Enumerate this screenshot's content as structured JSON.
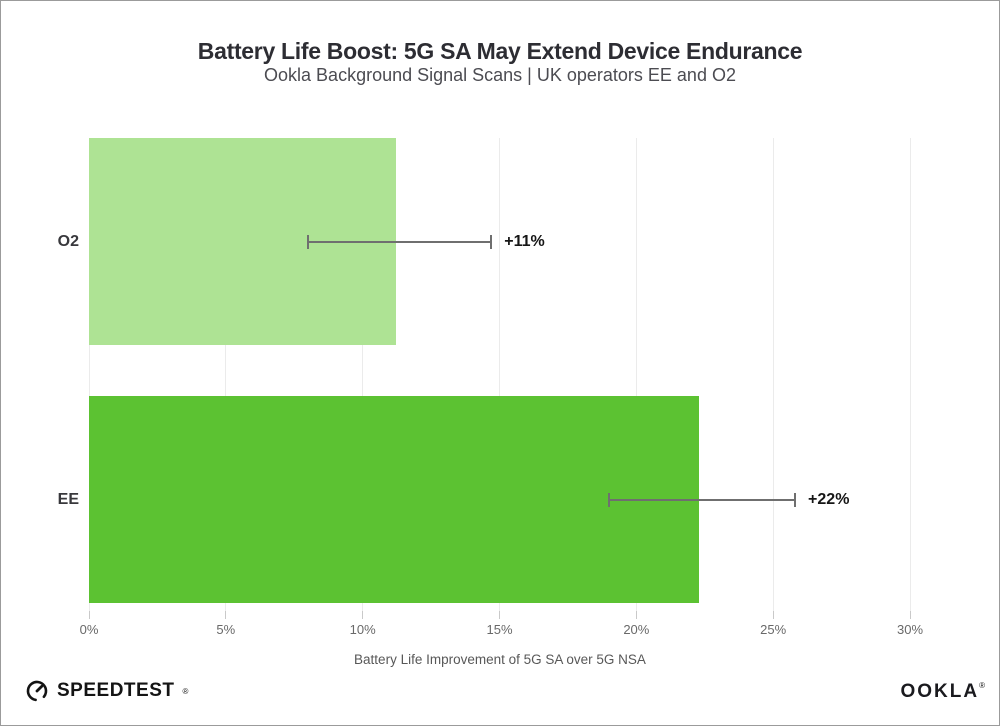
{
  "chart_data": {
    "type": "bar",
    "orientation": "horizontal",
    "title": "Battery Life Boost: 5G SA May Extend Device Endurance",
    "subtitle": "Ookla Background Signal Scans | UK operators EE and O2",
    "categories": [
      "O2",
      "EE"
    ],
    "values": [
      11.2,
      22.3
    ],
    "data_labels": [
      "+11%",
      "+22%"
    ],
    "bar_colors": [
      "#aee394",
      "#5cc232"
    ],
    "error_bars": [
      {
        "low": 8.0,
        "high": 14.7
      },
      {
        "low": 19.0,
        "high": 25.8
      }
    ],
    "xlabel": "Battery Life Improvement of 5G SA over 5G NSA",
    "xlim": [
      0,
      30
    ],
    "xticks": [
      0,
      5,
      10,
      15,
      20,
      25,
      30
    ],
    "xtick_labels": [
      "0%",
      "5%",
      "10%",
      "15%",
      "20%",
      "25%",
      "30%"
    ],
    "grid": "vertical-light",
    "legend": "none"
  },
  "footer": {
    "speedtest_logo": "SPEEDTEST",
    "speedtest_mark": "®",
    "ookla_logo": "OOKLA",
    "ookla_mark": "®"
  },
  "colors": {
    "bar_o2": "#aee394",
    "bar_ee": "#5cc232",
    "gridline": "#ebebeb",
    "error_bar": "#6f6f6f",
    "title_text": "#2d2d33",
    "subtitle_text": "#4c4c52",
    "axis_text": "#696969"
  }
}
